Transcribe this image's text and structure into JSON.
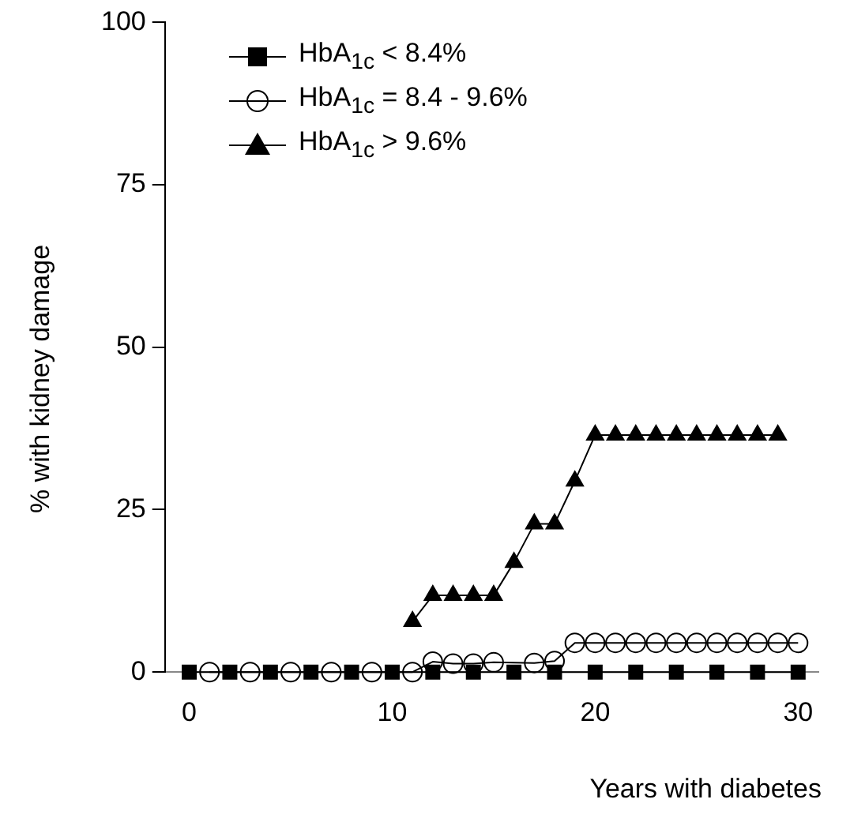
{
  "chart_data": {
    "type": "line",
    "xlabel": "Years with diabetes",
    "ylabel": "% with kidney damage",
    "xlim": [
      -1.2,
      31
    ],
    "xticks": [
      0,
      10,
      20,
      30
    ],
    "ylim": [
      0,
      100
    ],
    "yticks": [
      0,
      25,
      50,
      75,
      100
    ],
    "grid": false,
    "legend": "top left",
    "series": [
      {
        "name": "HbA$_{1c}$ < 8.4%",
        "color": "#000000",
        "marker": "square",
        "x": [
          0,
          2,
          4,
          6,
          8,
          10,
          12,
          14,
          16,
          18,
          20,
          22,
          24,
          26,
          28,
          30
        ],
        "values": [
          0,
          0,
          0,
          0,
          0,
          0,
          0,
          0,
          0,
          0,
          0,
          0,
          0,
          0,
          0,
          0
        ]
      },
      {
        "name": "HbA$_{1c}$ = 8.4 - 9.6%",
        "color": "#000000",
        "marker": "circle",
        "x": [
          1,
          3,
          5,
          7,
          9,
          11,
          12,
          13,
          14,
          15,
          17,
          18,
          19,
          20,
          21,
          22,
          23,
          24,
          25,
          26,
          27,
          28,
          29,
          30
        ],
        "values": [
          0,
          0,
          0,
          0,
          0,
          0,
          1.6,
          1.3,
          1.3,
          1.5,
          1.4,
          1.7,
          4.5,
          4.5,
          4.5,
          4.5,
          4.5,
          4.5,
          4.5,
          4.5,
          4.5,
          4.5,
          4.5,
          4.5
        ]
      },
      {
        "name": "HbA$_{1c}$ > 9.6%",
        "color": "#000000",
        "marker": "triangle",
        "x": [
          11,
          12,
          13,
          14,
          15,
          16,
          17,
          18,
          19,
          20,
          21,
          22,
          23,
          24,
          25,
          26,
          27,
          28,
          29
        ],
        "values": [
          7.8,
          11.8,
          11.8,
          11.8,
          11.8,
          16.9,
          22.8,
          22.8,
          29.4,
          36.5,
          36.5,
          36.5,
          36.5,
          36.5,
          36.5,
          36.5,
          36.5,
          36.5,
          36.5
        ]
      }
    ]
  }
}
